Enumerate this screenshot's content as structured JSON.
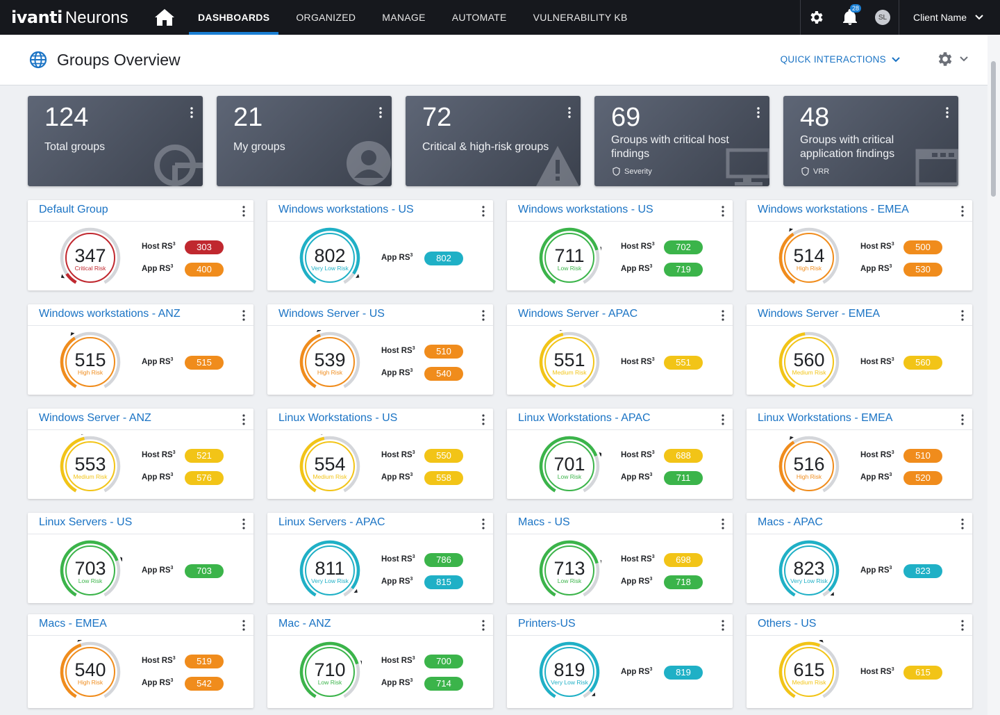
{
  "brand": {
    "ivanti": "ivanti",
    "neurons": "Neurons"
  },
  "nav": {
    "items": [
      "DASHBOARDS",
      "ORGANIZED",
      "MANAGE",
      "AUTOMATE",
      "VULNERABILITY KB"
    ],
    "notification_count": "28",
    "avatar_initials": "SL",
    "client_name": "Client Name"
  },
  "header": {
    "title": "Groups Overview",
    "quick_interactions": "QUICK INTERACTIONS"
  },
  "summary": [
    {
      "value": "124",
      "label": "Total groups",
      "tag": ""
    },
    {
      "value": "21",
      "label": "My groups",
      "tag": ""
    },
    {
      "value": "72",
      "label": "Critical & high-risk groups",
      "tag": ""
    },
    {
      "value": "69",
      "label": "Groups with critical host findings",
      "tag": "Severity"
    },
    {
      "value": "48",
      "label": "Groups with critical application findings",
      "tag": "VRR"
    }
  ],
  "metric_labels": {
    "host": "Host RS",
    "app": "App RS",
    "sup": "3"
  },
  "risk_colors": {
    "Critical Risk": "#c0282f",
    "High Risk": "#f08c1c",
    "Medium Risk": "#f2c417",
    "Low Risk": "#3bb44a",
    "Very Low Risk": "#1fb0c6"
  },
  "groups": [
    {
      "name": "Default Group",
      "score": "347",
      "risk": "Critical Risk",
      "host": "303",
      "host_risk": "Critical Risk",
      "app": "400",
      "app_risk": "High Risk"
    },
    {
      "name": "Windows workstations - US",
      "score": "802",
      "risk": "Very Low Risk",
      "host": "",
      "host_risk": "",
      "app": "802",
      "app_risk": "Very Low Risk"
    },
    {
      "name": "Windows workstations - US",
      "score": "711",
      "risk": "Low Risk",
      "host": "702",
      "host_risk": "Low Risk",
      "app": "719",
      "app_risk": "Low Risk"
    },
    {
      "name": "Windows workstations - EMEA",
      "score": "514",
      "risk": "High Risk",
      "host": "500",
      "host_risk": "High Risk",
      "app": "530",
      "app_risk": "High Risk"
    },
    {
      "name": "Windows workstations - ANZ",
      "score": "515",
      "risk": "High Risk",
      "host": "",
      "host_risk": "",
      "app": "515",
      "app_risk": "High Risk"
    },
    {
      "name": "Windows Server - US",
      "score": "539",
      "risk": "High Risk",
      "host": "510",
      "host_risk": "High Risk",
      "app": "540",
      "app_risk": "High Risk"
    },
    {
      "name": "Windows Server - APAC",
      "score": "551",
      "risk": "Medium Risk",
      "host": "551",
      "host_risk": "Medium Risk",
      "app": "",
      "app_risk": ""
    },
    {
      "name": "Windows Server - EMEA",
      "score": "560",
      "risk": "Medium Risk",
      "host": "560",
      "host_risk": "Medium Risk",
      "app": "",
      "app_risk": ""
    },
    {
      "name": "Windows Server - ANZ",
      "score": "553",
      "risk": "Medium Risk",
      "host": "521",
      "host_risk": "Medium Risk",
      "app": "576",
      "app_risk": "Medium Risk"
    },
    {
      "name": "Linux Workstations - US",
      "score": "554",
      "risk": "Medium Risk",
      "host": "550",
      "host_risk": "Medium Risk",
      "app": "558",
      "app_risk": "Medium Risk"
    },
    {
      "name": "Linux Workstations - APAC",
      "score": "701",
      "risk": "Low Risk",
      "host": "688",
      "host_risk": "Medium Risk",
      "app": "711",
      "app_risk": "Low Risk"
    },
    {
      "name": "Linux Workstations - EMEA",
      "score": "516",
      "risk": "High Risk",
      "host": "510",
      "host_risk": "High Risk",
      "app": "520",
      "app_risk": "High Risk"
    },
    {
      "name": "Linux Servers - US",
      "score": "703",
      "risk": "Low Risk",
      "host": "",
      "host_risk": "",
      "app": "703",
      "app_risk": "Low Risk"
    },
    {
      "name": "Linux Servers - APAC",
      "score": "811",
      "risk": "Very Low Risk",
      "host": "786",
      "host_risk": "Low Risk",
      "app": "815",
      "app_risk": "Very Low Risk"
    },
    {
      "name": "Macs - US",
      "score": "713",
      "risk": "Low Risk",
      "host": "698",
      "host_risk": "Medium Risk",
      "app": "718",
      "app_risk": "Low Risk"
    },
    {
      "name": "Macs - APAC",
      "score": "823",
      "risk": "Very Low Risk",
      "host": "",
      "host_risk": "",
      "app": "823",
      "app_risk": "Very Low Risk"
    },
    {
      "name": "Macs - EMEA",
      "score": "540",
      "risk": "High Risk",
      "host": "519",
      "host_risk": "High Risk",
      "app": "542",
      "app_risk": "High Risk"
    },
    {
      "name": "Mac - ANZ",
      "score": "710",
      "risk": "Low Risk",
      "host": "700",
      "host_risk": "Low Risk",
      "app": "714",
      "app_risk": "Low Risk"
    },
    {
      "name": "Printers-US",
      "score": "819",
      "risk": "Very Low Risk",
      "host": "",
      "host_risk": "",
      "app": "819",
      "app_risk": "Very Low Risk"
    },
    {
      "name": "Others - US",
      "score": "615",
      "risk": "Medium Risk",
      "host": "615",
      "host_risk": "Medium Risk",
      "app": "",
      "app_risk": ""
    }
  ]
}
